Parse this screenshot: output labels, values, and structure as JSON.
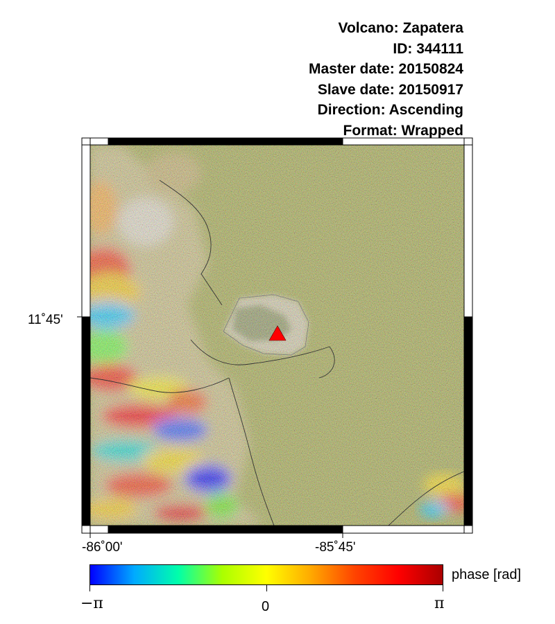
{
  "info": {
    "volcano": "Volcano: Zapatera",
    "id": "ID: 344111",
    "master_date": "Master date: 20150824",
    "slave_date": "Slave date: 20150917",
    "direction": "Direction: Ascending",
    "format": "Format: Wrapped"
  },
  "axes": {
    "lat_label": "11˚45'",
    "lon_labels": [
      "-86˚00'",
      "-85˚45'"
    ]
  },
  "colorbar": {
    "label": "phase [rad]",
    "min_label": "−π",
    "mid_label": "0",
    "max_label": "π",
    "colors": [
      "#0000ff",
      "#00aaff",
      "#00ffaa",
      "#aaff00",
      "#ffff00",
      "#ffaa00",
      "#ff4400",
      "#ff0000",
      "#aa0000"
    ]
  },
  "map": {
    "background_noise_color": "#a3a83a",
    "volcano_marker_color": "#ff0000",
    "marker_icon": "triangle-icon"
  }
}
